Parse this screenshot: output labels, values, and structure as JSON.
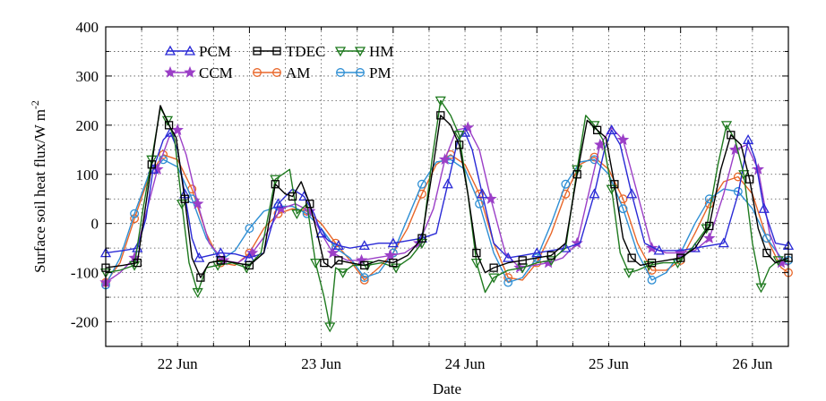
{
  "chart_data": {
    "type": "line",
    "xlabel": "Date",
    "ylabel": "Surface soil heat flux/W m",
    "ylabel_sup": "-2",
    "xlim": [
      0,
      4.75
    ],
    "ylim": [
      -250,
      400
    ],
    "yticks": [
      -200,
      -100,
      0,
      100,
      200,
      300,
      400
    ],
    "xticks": [
      {
        "label": "22 Jun",
        "value": 0.5
      },
      {
        "label": "23 Jun",
        "value": 1.5
      },
      {
        "label": "24 Jun",
        "value": 2.5
      },
      {
        "label": "25 Jun",
        "value": 3.5
      },
      {
        "label": "26 Jun",
        "value": 4.5
      }
    ],
    "grid": true,
    "legend_position": "top-left",
    "x_units": "days since 21 Jun 12:00 (axis starts ~21 Jun 12:00)",
    "series": [
      {
        "name": "PCM",
        "color": "#2a2ad6",
        "marker": "triangle-up",
        "x": [
          0.0,
          0.12,
          0.22,
          0.28,
          0.33,
          0.4,
          0.45,
          0.5,
          0.55,
          0.6,
          0.65,
          0.72,
          0.8,
          0.9,
          1.0,
          1.1,
          1.2,
          1.3,
          1.38,
          1.45,
          1.5,
          1.55,
          1.62,
          1.7,
          1.8,
          1.9,
          2.0,
          2.1,
          2.2,
          2.3,
          2.38,
          2.45,
          2.5,
          2.55,
          2.62,
          2.7,
          2.8,
          2.9,
          3.0,
          3.1,
          3.2,
          3.3,
          3.4,
          3.47,
          3.52,
          3.58,
          3.66,
          3.75,
          3.85,
          4.0,
          4.1,
          4.2,
          4.3,
          4.4,
          4.47,
          4.52,
          4.58,
          4.66,
          4.75
        ],
        "y": [
          -60,
          -55,
          -50,
          10,
          110,
          170,
          185,
          150,
          60,
          -30,
          -70,
          -65,
          -60,
          -62,
          -70,
          -60,
          40,
          70,
          55,
          20,
          -20,
          -35,
          -45,
          -50,
          -45,
          -40,
          -40,
          -35,
          -30,
          -20,
          80,
          170,
          185,
          150,
          60,
          -40,
          -70,
          -65,
          -60,
          -55,
          -50,
          -40,
          60,
          150,
          190,
          160,
          60,
          -40,
          -55,
          -55,
          -50,
          -45,
          -40,
          60,
          170,
          130,
          30,
          -40,
          -45
        ]
      },
      {
        "name": "TDEC",
        "color": "#000000",
        "marker": "square",
        "x": [
          0.0,
          0.12,
          0.22,
          0.27,
          0.32,
          0.38,
          0.44,
          0.49,
          0.55,
          0.6,
          0.66,
          0.72,
          0.8,
          0.9,
          1.0,
          1.1,
          1.18,
          1.25,
          1.3,
          1.36,
          1.42,
          1.48,
          1.52,
          1.57,
          1.62,
          1.7,
          1.8,
          1.9,
          2.0,
          2.1,
          2.2,
          2.28,
          2.33,
          2.4,
          2.46,
          2.52,
          2.58,
          2.64,
          2.7,
          2.8,
          2.9,
          3.0,
          3.1,
          3.2,
          3.28,
          3.35,
          3.42,
          3.48,
          3.54,
          3.6,
          3.66,
          3.72,
          3.8,
          3.9,
          4.0,
          4.1,
          4.2,
          4.28,
          4.35,
          4.42,
          4.48,
          4.54,
          4.6,
          4.66,
          4.75
        ],
        "y": [
          -90,
          -85,
          -80,
          20,
          120,
          240,
          200,
          175,
          50,
          -70,
          -110,
          -80,
          -75,
          -80,
          -85,
          -60,
          80,
          60,
          55,
          85,
          40,
          -30,
          -80,
          -90,
          -75,
          -80,
          -85,
          -75,
          -80,
          -65,
          -30,
          120,
          220,
          200,
          160,
          60,
          -60,
          -100,
          -90,
          -80,
          -75,
          -70,
          -65,
          -40,
          100,
          210,
          190,
          175,
          80,
          -30,
          -70,
          -85,
          -80,
          -75,
          -70,
          -50,
          -5,
          110,
          180,
          160,
          90,
          -10,
          -60,
          -80,
          -70
        ]
      },
      {
        "name": "HM",
        "color": "#1f7a1f",
        "marker": "triangle-down",
        "x": [
          0.0,
          0.1,
          0.2,
          0.26,
          0.32,
          0.38,
          0.43,
          0.48,
          0.53,
          0.58,
          0.64,
          0.7,
          0.78,
          0.88,
          0.98,
          1.08,
          1.18,
          1.28,
          1.33,
          1.4,
          1.46,
          1.52,
          1.56,
          1.6,
          1.65,
          1.72,
          1.82,
          1.92,
          2.02,
          2.12,
          2.2,
          2.27,
          2.33,
          2.4,
          2.46,
          2.52,
          2.58,
          2.64,
          2.7,
          2.8,
          2.9,
          3.0,
          3.1,
          3.2,
          3.28,
          3.34,
          3.4,
          3.46,
          3.52,
          3.58,
          3.64,
          3.7,
          3.78,
          3.88,
          3.98,
          4.08,
          4.18,
          4.26,
          4.32,
          4.38,
          4.44,
          4.5,
          4.56,
          4.62,
          4.68,
          4.75
        ],
        "y": [
          -100,
          -95,
          -85,
          30,
          130,
          235,
          210,
          170,
          40,
          -80,
          -140,
          -90,
          -85,
          -80,
          -90,
          -60,
          90,
          110,
          20,
          40,
          -80,
          -150,
          -210,
          -90,
          -100,
          -85,
          -85,
          -80,
          -90,
          -70,
          -40,
          130,
          250,
          220,
          180,
          60,
          -80,
          -140,
          -110,
          -95,
          -90,
          -80,
          -75,
          -50,
          110,
          220,
          200,
          170,
          70,
          -60,
          -100,
          -95,
          -85,
          -80,
          -80,
          -50,
          -10,
          120,
          200,
          170,
          100,
          -40,
          -130,
          -90,
          -75,
          -75
        ]
      },
      {
        "name": "CCM",
        "color": "#9b3fc7",
        "marker": "star",
        "x": [
          0.0,
          0.1,
          0.2,
          0.28,
          0.36,
          0.44,
          0.5,
          0.56,
          0.64,
          0.72,
          0.82,
          0.92,
          1.02,
          1.12,
          1.22,
          1.32,
          1.42,
          1.5,
          1.58,
          1.68,
          1.78,
          1.88,
          1.98,
          2.08,
          2.18,
          2.28,
          2.36,
          2.44,
          2.52,
          2.6,
          2.68,
          2.78,
          2.88,
          2.98,
          3.08,
          3.18,
          3.28,
          3.36,
          3.44,
          3.52,
          3.6,
          3.7,
          3.8,
          3.9,
          4.0,
          4.1,
          4.2,
          4.3,
          4.38,
          4.46,
          4.54,
          4.62,
          4.7,
          4.75
        ],
        "y": [
          -120,
          -100,
          -70,
          20,
          110,
          175,
          190,
          140,
          40,
          -40,
          -75,
          -80,
          -60,
          -20,
          30,
          40,
          25,
          -20,
          -60,
          -75,
          -75,
          -70,
          -65,
          -60,
          -40,
          30,
          130,
          190,
          195,
          150,
          50,
          -60,
          -90,
          -85,
          -80,
          -70,
          -40,
          60,
          160,
          195,
          170,
          60,
          -50,
          -60,
          -60,
          -55,
          -30,
          60,
          150,
          160,
          110,
          -20,
          -80,
          -85
        ]
      },
      {
        "name": "AM",
        "color": "#e8672a",
        "marker": "circle",
        "x": [
          0.0,
          0.1,
          0.2,
          0.3,
          0.4,
          0.5,
          0.6,
          0.7,
          0.8,
          0.9,
          1.0,
          1.1,
          1.2,
          1.3,
          1.4,
          1.5,
          1.6,
          1.7,
          1.8,
          1.9,
          2.0,
          2.1,
          2.2,
          2.3,
          2.4,
          2.5,
          2.6,
          2.7,
          2.8,
          2.9,
          3.0,
          3.1,
          3.2,
          3.3,
          3.4,
          3.5,
          3.6,
          3.7,
          3.8,
          3.9,
          4.0,
          4.1,
          4.2,
          4.3,
          4.4,
          4.5,
          4.6,
          4.7,
          4.75
        ],
        "y": [
          -120,
          -80,
          10,
          95,
          140,
          130,
          70,
          -20,
          -80,
          -85,
          -60,
          -10,
          20,
          30,
          25,
          0,
          -40,
          -75,
          -115,
          -90,
          -60,
          -10,
          60,
          120,
          140,
          120,
          60,
          -40,
          -110,
          -115,
          -80,
          -20,
          60,
          120,
          135,
          110,
          50,
          -40,
          -95,
          -95,
          -75,
          -20,
          40,
          85,
          95,
          60,
          -30,
          -90,
          -100
        ]
      },
      {
        "name": "PM",
        "color": "#2f8fd4",
        "marker": "circle",
        "x": [
          0.0,
          0.1,
          0.2,
          0.3,
          0.4,
          0.5,
          0.6,
          0.7,
          0.8,
          0.9,
          1.0,
          1.1,
          1.2,
          1.3,
          1.4,
          1.5,
          1.6,
          1.7,
          1.8,
          1.9,
          2.0,
          2.1,
          2.2,
          2.3,
          2.4,
          2.5,
          2.6,
          2.7,
          2.8,
          2.9,
          3.0,
          3.1,
          3.2,
          3.3,
          3.4,
          3.5,
          3.6,
          3.7,
          3.8,
          3.9,
          4.0,
          4.1,
          4.2,
          4.3,
          4.4,
          4.5,
          4.6,
          4.7,
          4.75
        ],
        "y": [
          -125,
          -70,
          20,
          100,
          130,
          115,
          50,
          -30,
          -75,
          -55,
          -10,
          25,
          35,
          35,
          20,
          -10,
          -50,
          -70,
          -110,
          -100,
          -60,
          10,
          80,
          125,
          130,
          110,
          40,
          -60,
          -120,
          -110,
          -70,
          0,
          80,
          125,
          130,
          100,
          30,
          -60,
          -115,
          -100,
          -60,
          0,
          50,
          70,
          65,
          30,
          -30,
          -70,
          -75
        ]
      }
    ]
  }
}
